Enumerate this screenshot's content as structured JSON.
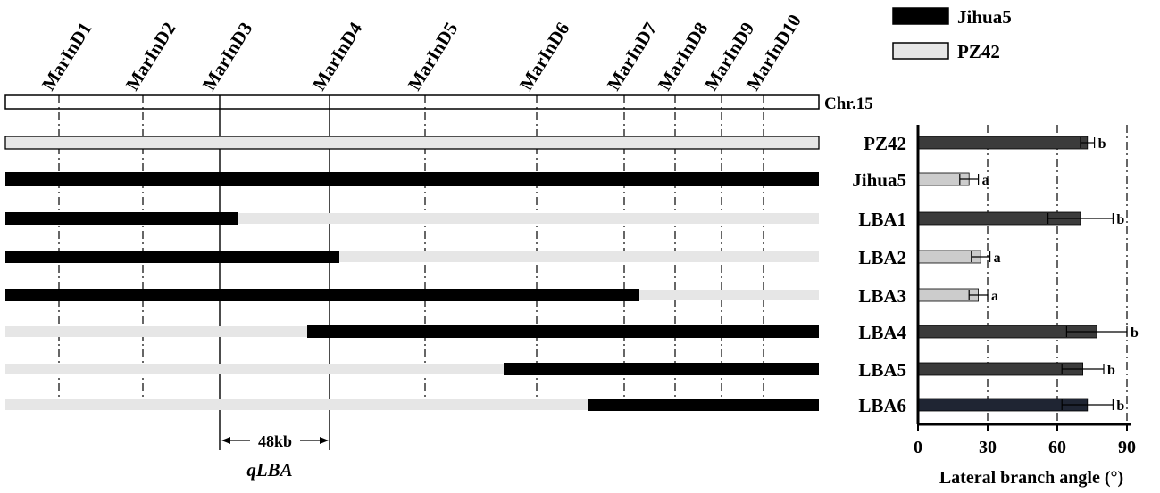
{
  "legend": [
    {
      "label": "Jihua5",
      "color": "#000000"
    },
    {
      "label": "PZ42",
      "color": "#e6e6e6"
    }
  ],
  "chromosome_label": "Chr.15",
  "markers": [
    "MarInD1",
    "MarInD2",
    "MarInD3",
    "MarInD4",
    "MarInD5",
    "MarInD6",
    "MarInD7",
    "MarInD8",
    "MarInD9",
    "MarInD10"
  ],
  "interval": {
    "distance": "48kb",
    "qtl": "qLBA"
  },
  "colors": {
    "jihua5": "#000000",
    "pz42": "#e6e6e6",
    "bar_dark": "#3b3b3b",
    "bar_light": "#cccccc",
    "bar_navy": "#1f2533"
  },
  "lines": [
    {
      "name": "PZ42",
      "genotype": "all PZ42"
    },
    {
      "name": "Jihua5",
      "genotype": "all Jihua5"
    },
    {
      "name": "LBA1",
      "genotype": "Jihua5 to between MarInD3 and MarInD4, PZ42 after"
    },
    {
      "name": "LBA2",
      "genotype": "Jihua5 to just past MarInD4, PZ42 after"
    },
    {
      "name": "LBA3",
      "genotype": "Jihua5 to between MarInD7 and MarInD8, PZ42 after"
    },
    {
      "name": "LBA4",
      "genotype": "PZ42 to between MarInD3 and MarInD4, Jihua5 after"
    },
    {
      "name": "LBA5",
      "genotype": "PZ42 to between MarInD5 and MarInD6, Jihua5 after"
    },
    {
      "name": "LBA6",
      "genotype": "PZ42 to between MarInD6 and MarInD7, Jihua5 after"
    }
  ],
  "chart_data": {
    "type": "bar",
    "orientation": "horizontal",
    "categories": [
      "PZ42",
      "Jihua5",
      "LBA1",
      "LBA2",
      "LBA3",
      "LBA4",
      "LBA5",
      "LBA6"
    ],
    "values": [
      73,
      22,
      70,
      27,
      26,
      77,
      71,
      73
    ],
    "errors": [
      3,
      4,
      14,
      4,
      4,
      13,
      9,
      11
    ],
    "significance": [
      "b",
      "a",
      "b",
      "a",
      "a",
      "b",
      "b",
      "b"
    ],
    "bar_colors": [
      "#3b3b3b",
      "#cccccc",
      "#3b3b3b",
      "#cccccc",
      "#cccccc",
      "#3b3b3b",
      "#3b3b3b",
      "#1f2533"
    ],
    "xlabel": "Lateral branch angle (°)",
    "xticks": [
      "0",
      "30",
      "60",
      "90"
    ],
    "xlim": [
      0,
      90
    ],
    "grid": "vertical dash-dot at 30, 60, 90"
  }
}
